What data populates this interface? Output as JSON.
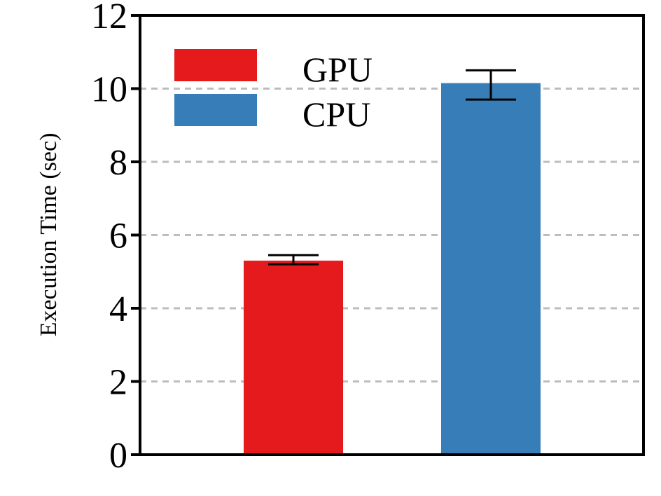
{
  "chart_data": {
    "type": "bar",
    "title": "",
    "xlabel": "",
    "ylabel": "Execution Time (sec)",
    "ylim": [
      0,
      12
    ],
    "yticks": [
      0,
      2,
      4,
      6,
      8,
      10,
      12
    ],
    "grid": true,
    "legend_position": "top-left",
    "series": [
      {
        "name": "GPU",
        "value": 5.3,
        "error_low": 5.2,
        "error_high": 5.45,
        "color": "#e41a1c"
      },
      {
        "name": "CPU",
        "value": 10.15,
        "error_low": 9.7,
        "error_high": 10.5,
        "color": "#377eb8"
      }
    ]
  }
}
